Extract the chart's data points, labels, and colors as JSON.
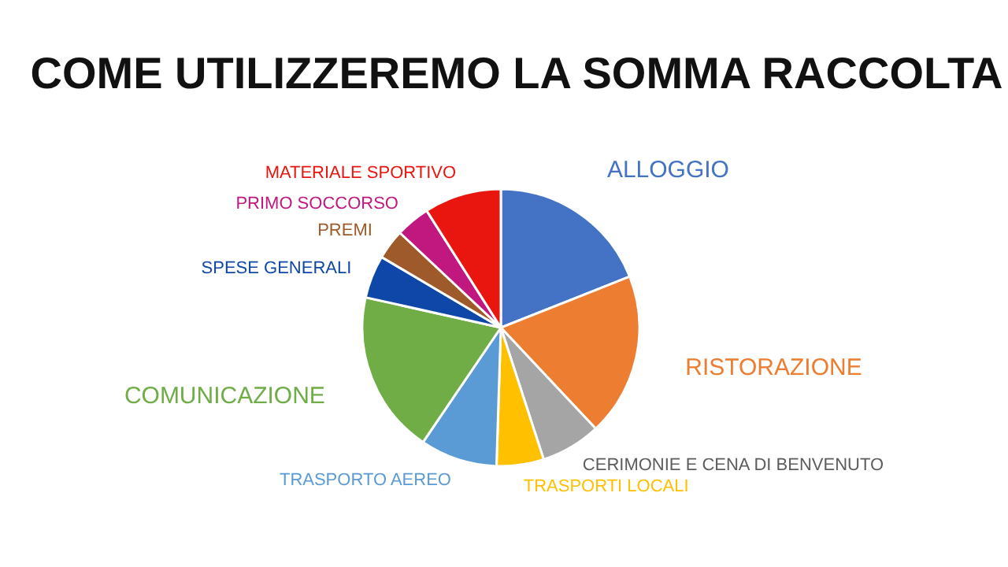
{
  "chart_data": {
    "type": "pie",
    "title": "COME UTILIZZEREMO LA SOMMA RACCOLTA",
    "categories": [
      "ALLOGGIO",
      "RISTORAZIONE",
      "CERIMONIE E CENA DI BENVENUTO",
      "TRASPORTI LOCALI",
      "TRASPORTO AEREO",
      "COMUNICAZIONE",
      "SPESE GENERALI",
      "PREMI",
      "PRIMO SOCCORSO",
      "MATERIALE SPORTIVO"
    ],
    "values": [
      19,
      19,
      7,
      5.5,
      9,
      19,
      5,
      3.5,
      4,
      9
    ],
    "colors": [
      "#4472c4",
      "#ed7d31",
      "#a5a5a5",
      "#ffc000",
      "#5b9bd5",
      "#70ad47",
      "#0f47a8",
      "#9e5a2a",
      "#c0187f",
      "#e8160f"
    ]
  }
}
